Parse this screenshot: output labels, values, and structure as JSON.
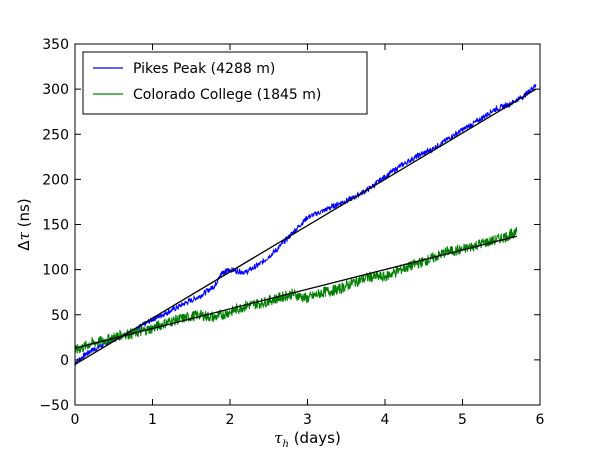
{
  "chart_data": {
    "type": "line",
    "xlabel_symbol": "τ",
    "xlabel_sub": "h",
    "xlabel_unit": " (days)",
    "ylabel_prefix": "Δ",
    "ylabel_symbol": "τ",
    "ylabel_unit": " (ns)",
    "xlim": [
      0,
      6
    ],
    "ylim": [
      -50,
      350
    ],
    "xticks": [
      0,
      1,
      2,
      3,
      4,
      5,
      6
    ],
    "yticks": [
      -50,
      0,
      50,
      100,
      150,
      200,
      250,
      300,
      350
    ],
    "xtick_labels": [
      "0",
      "1",
      "2",
      "3",
      "4",
      "5",
      "6"
    ],
    "ytick_labels": [
      "−50",
      "0",
      "50",
      "100",
      "150",
      "200",
      "250",
      "300",
      "350"
    ],
    "legend_position": "top-left",
    "grid": false,
    "series": [
      {
        "name": "Pikes Peak (4288 m)",
        "color": "#0000ff",
        "x": [
          0,
          0.2,
          0.4,
          0.6,
          0.8,
          1.0,
          1.2,
          1.4,
          1.6,
          1.8,
          1.9,
          2.0,
          2.2,
          2.4,
          2.6,
          2.8,
          3.0,
          3.2,
          3.4,
          3.6,
          3.8,
          4.0,
          4.2,
          4.4,
          4.6,
          4.8,
          5.0,
          5.2,
          5.4,
          5.6,
          5.8,
          5.95
        ],
        "y": [
          -3,
          10,
          18,
          27,
          34,
          45,
          53,
          62,
          70,
          82,
          97,
          100,
          97,
          107,
          122,
          140,
          158,
          165,
          173,
          180,
          190,
          203,
          215,
          225,
          233,
          244,
          255,
          265,
          277,
          283,
          293,
          305
        ],
        "noise": 3
      },
      {
        "name": "Colorado College (1845 m)",
        "color": "#008000",
        "x": [
          0,
          0.2,
          0.4,
          0.6,
          0.8,
          1.0,
          1.2,
          1.4,
          1.6,
          1.8,
          2.0,
          2.2,
          2.4,
          2.6,
          2.8,
          3.0,
          3.2,
          3.4,
          3.6,
          3.8,
          4.0,
          4.2,
          4.4,
          4.6,
          4.8,
          5.0,
          5.2,
          5.4,
          5.6,
          5.7
        ],
        "y": [
          10,
          18,
          22,
          28,
          30,
          35,
          42,
          46,
          50,
          47,
          53,
          60,
          63,
          68,
          73,
          68,
          75,
          78,
          86,
          92,
          92,
          100,
          106,
          112,
          120,
          122,
          128,
          132,
          138,
          142
        ],
        "noise": 6
      },
      {
        "name": "",
        "color": "#000000",
        "x": [
          0,
          5.95
        ],
        "y": [
          -5,
          300
        ],
        "noise": 0
      },
      {
        "name": "",
        "color": "#000000",
        "x": [
          0,
          5.7
        ],
        "y": [
          13,
          137
        ],
        "noise": 0
      }
    ]
  }
}
